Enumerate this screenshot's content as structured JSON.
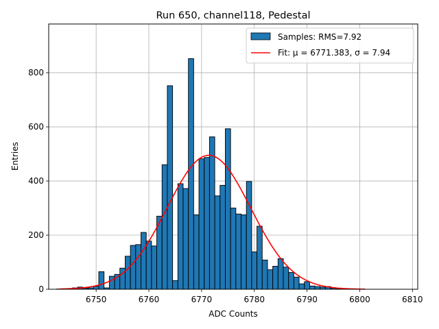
{
  "chart_data": {
    "type": "bar",
    "title": "Run 650, channel118, Pedestal",
    "xlabel": "ADC Counts",
    "ylabel": "Entries",
    "xlim": [
      6741,
      6811
    ],
    "ylim": [
      0,
      980
    ],
    "xticks": [
      6750,
      6760,
      6770,
      6780,
      6790,
      6800,
      6810
    ],
    "yticks": [
      0,
      200,
      400,
      600,
      800
    ],
    "grid": true,
    "legend_position": "top-right",
    "bar_color": "#1f77b4",
    "fit_color": "#ff0000",
    "bins": {
      "x": [
        6743,
        6744,
        6745,
        6746,
        6747,
        6748,
        6749,
        6750,
        6751,
        6752,
        6753,
        6754,
        6755,
        6756,
        6757,
        6758,
        6759,
        6760,
        6761,
        6762,
        6763,
        6764,
        6765,
        6766,
        6767,
        6768,
        6769,
        6770,
        6771,
        6772,
        6773,
        6774,
        6775,
        6776,
        6777,
        6778,
        6779,
        6780,
        6781,
        6782,
        6783,
        6784,
        6785,
        6786,
        6787,
        6788,
        6789,
        6790,
        6791,
        6792,
        6793,
        6794,
        6795,
        6796,
        6797
      ],
      "width": 1,
      "values": [
        1,
        2,
        3,
        5,
        8,
        4,
        5,
        11,
        65,
        5,
        48,
        55,
        78,
        122,
        162,
        165,
        210,
        178,
        160,
        270,
        460,
        752,
        32,
        390,
        372,
        852,
        275,
        482,
        487,
        563,
        345,
        384,
        593,
        300,
        278,
        275,
        398,
        138,
        233,
        108,
        72,
        85,
        113,
        82,
        62,
        45,
        20,
        28,
        12,
        10,
        8,
        10,
        4,
        2,
        1
      ]
    },
    "series": [
      {
        "name": "Samples: RMS=7.92",
        "type": "bar"
      },
      {
        "name": "Fit: μ = 6771.383, σ = 7.94",
        "type": "line",
        "mu": 6771.383,
        "sigma": 7.94,
        "amplitude": 495,
        "range": [
          6743,
          6801
        ]
      }
    ]
  }
}
